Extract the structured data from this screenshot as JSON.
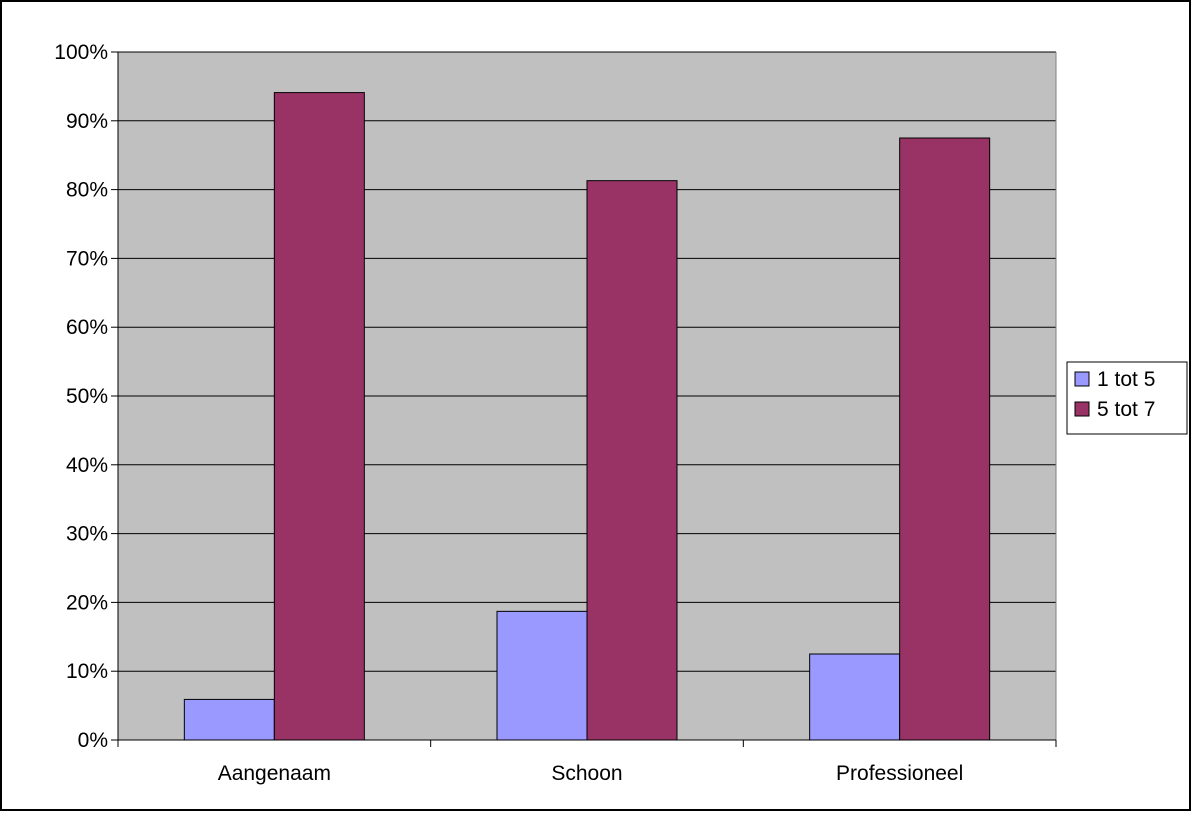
{
  "chart_data": {
    "type": "bar",
    "categories": [
      "Aangenaam",
      "Schoon",
      "Professioneel"
    ],
    "series": [
      {
        "name": "1 tot 5",
        "values": [
          5.9,
          18.7,
          12.5
        ],
        "color": "#9999ff"
      },
      {
        "name": "5 tot 7",
        "values": [
          94.1,
          81.3,
          87.5
        ],
        "color": "#993366"
      }
    ],
    "title": "",
    "xlabel": "",
    "ylabel": "",
    "ylim": [
      0,
      100
    ],
    "ytick_step": 10,
    "ytick_labels": [
      "0%",
      "10%",
      "20%",
      "30%",
      "40%",
      "50%",
      "60%",
      "70%",
      "80%",
      "90%",
      "100%"
    ],
    "grid": true,
    "legend": "right",
    "plot_background": "#c0c0c0",
    "page_background": "#ffffff"
  }
}
